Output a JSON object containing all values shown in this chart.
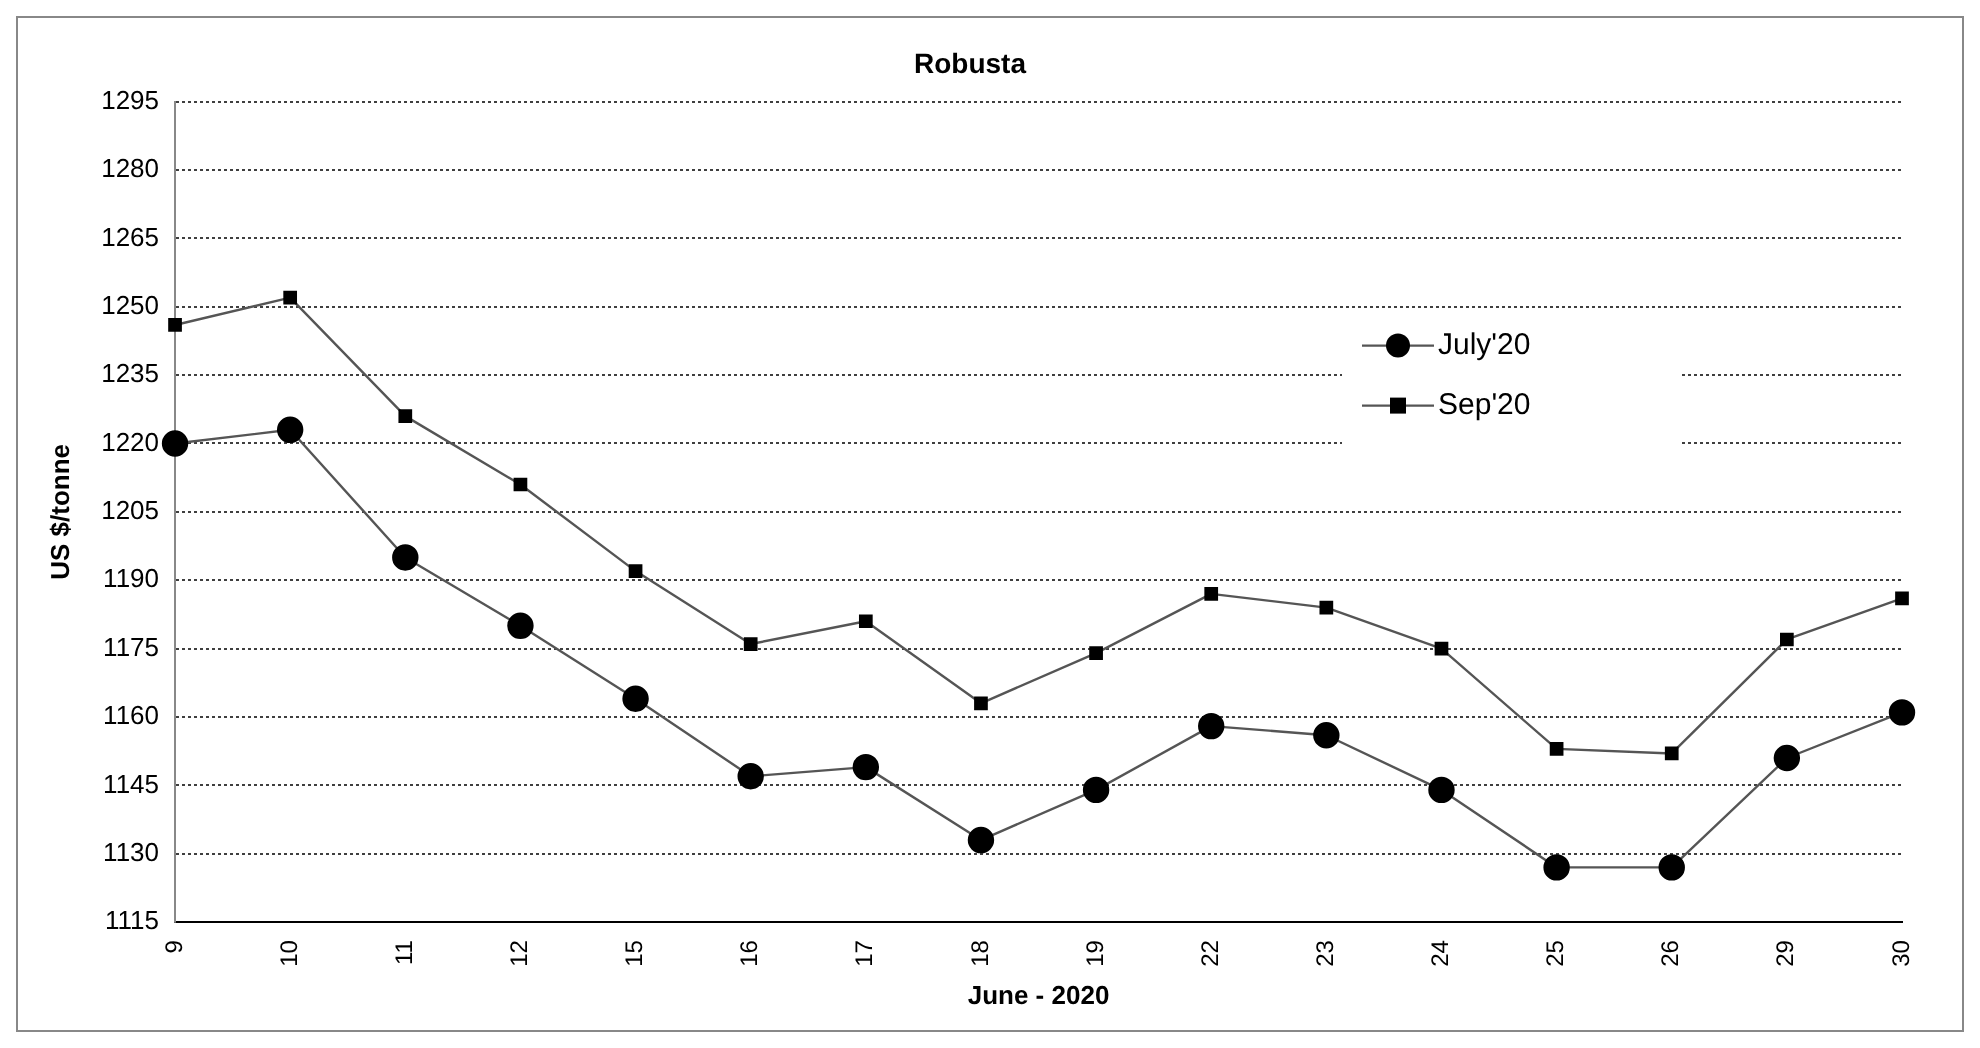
{
  "chart_data": {
    "type": "line",
    "title": "Robusta",
    "xlabel": "June - 2020",
    "ylabel": "US $/tonne",
    "categories": [
      "9",
      "10",
      "11",
      "12",
      "15",
      "16",
      "17",
      "18",
      "19",
      "22",
      "23",
      "24",
      "25",
      "26",
      "29",
      "30"
    ],
    "series": [
      {
        "name": "July'20",
        "color": "#000000",
        "marker": "circle",
        "values": [
          1220,
          1223,
          1195,
          1180,
          1164,
          1147,
          1149,
          1133,
          1144,
          1158,
          1156,
          1144,
          1127,
          1127,
          1151,
          1161
        ]
      },
      {
        "name": "Sep'20",
        "color": "#000000",
        "marker": "square",
        "values": [
          1246,
          1252,
          1226,
          1211,
          1192,
          1176,
          1181,
          1163,
          1174,
          1187,
          1184,
          1175,
          1153,
          1152,
          1177,
          1186
        ]
      }
    ],
    "ylim": [
      1115,
      1295
    ],
    "yticks": [
      1115,
      1130,
      1145,
      1160,
      1175,
      1190,
      1205,
      1220,
      1235,
      1250,
      1265,
      1280,
      1295
    ],
    "grid": "y",
    "legend": "top right",
    "line_style": "solid"
  }
}
